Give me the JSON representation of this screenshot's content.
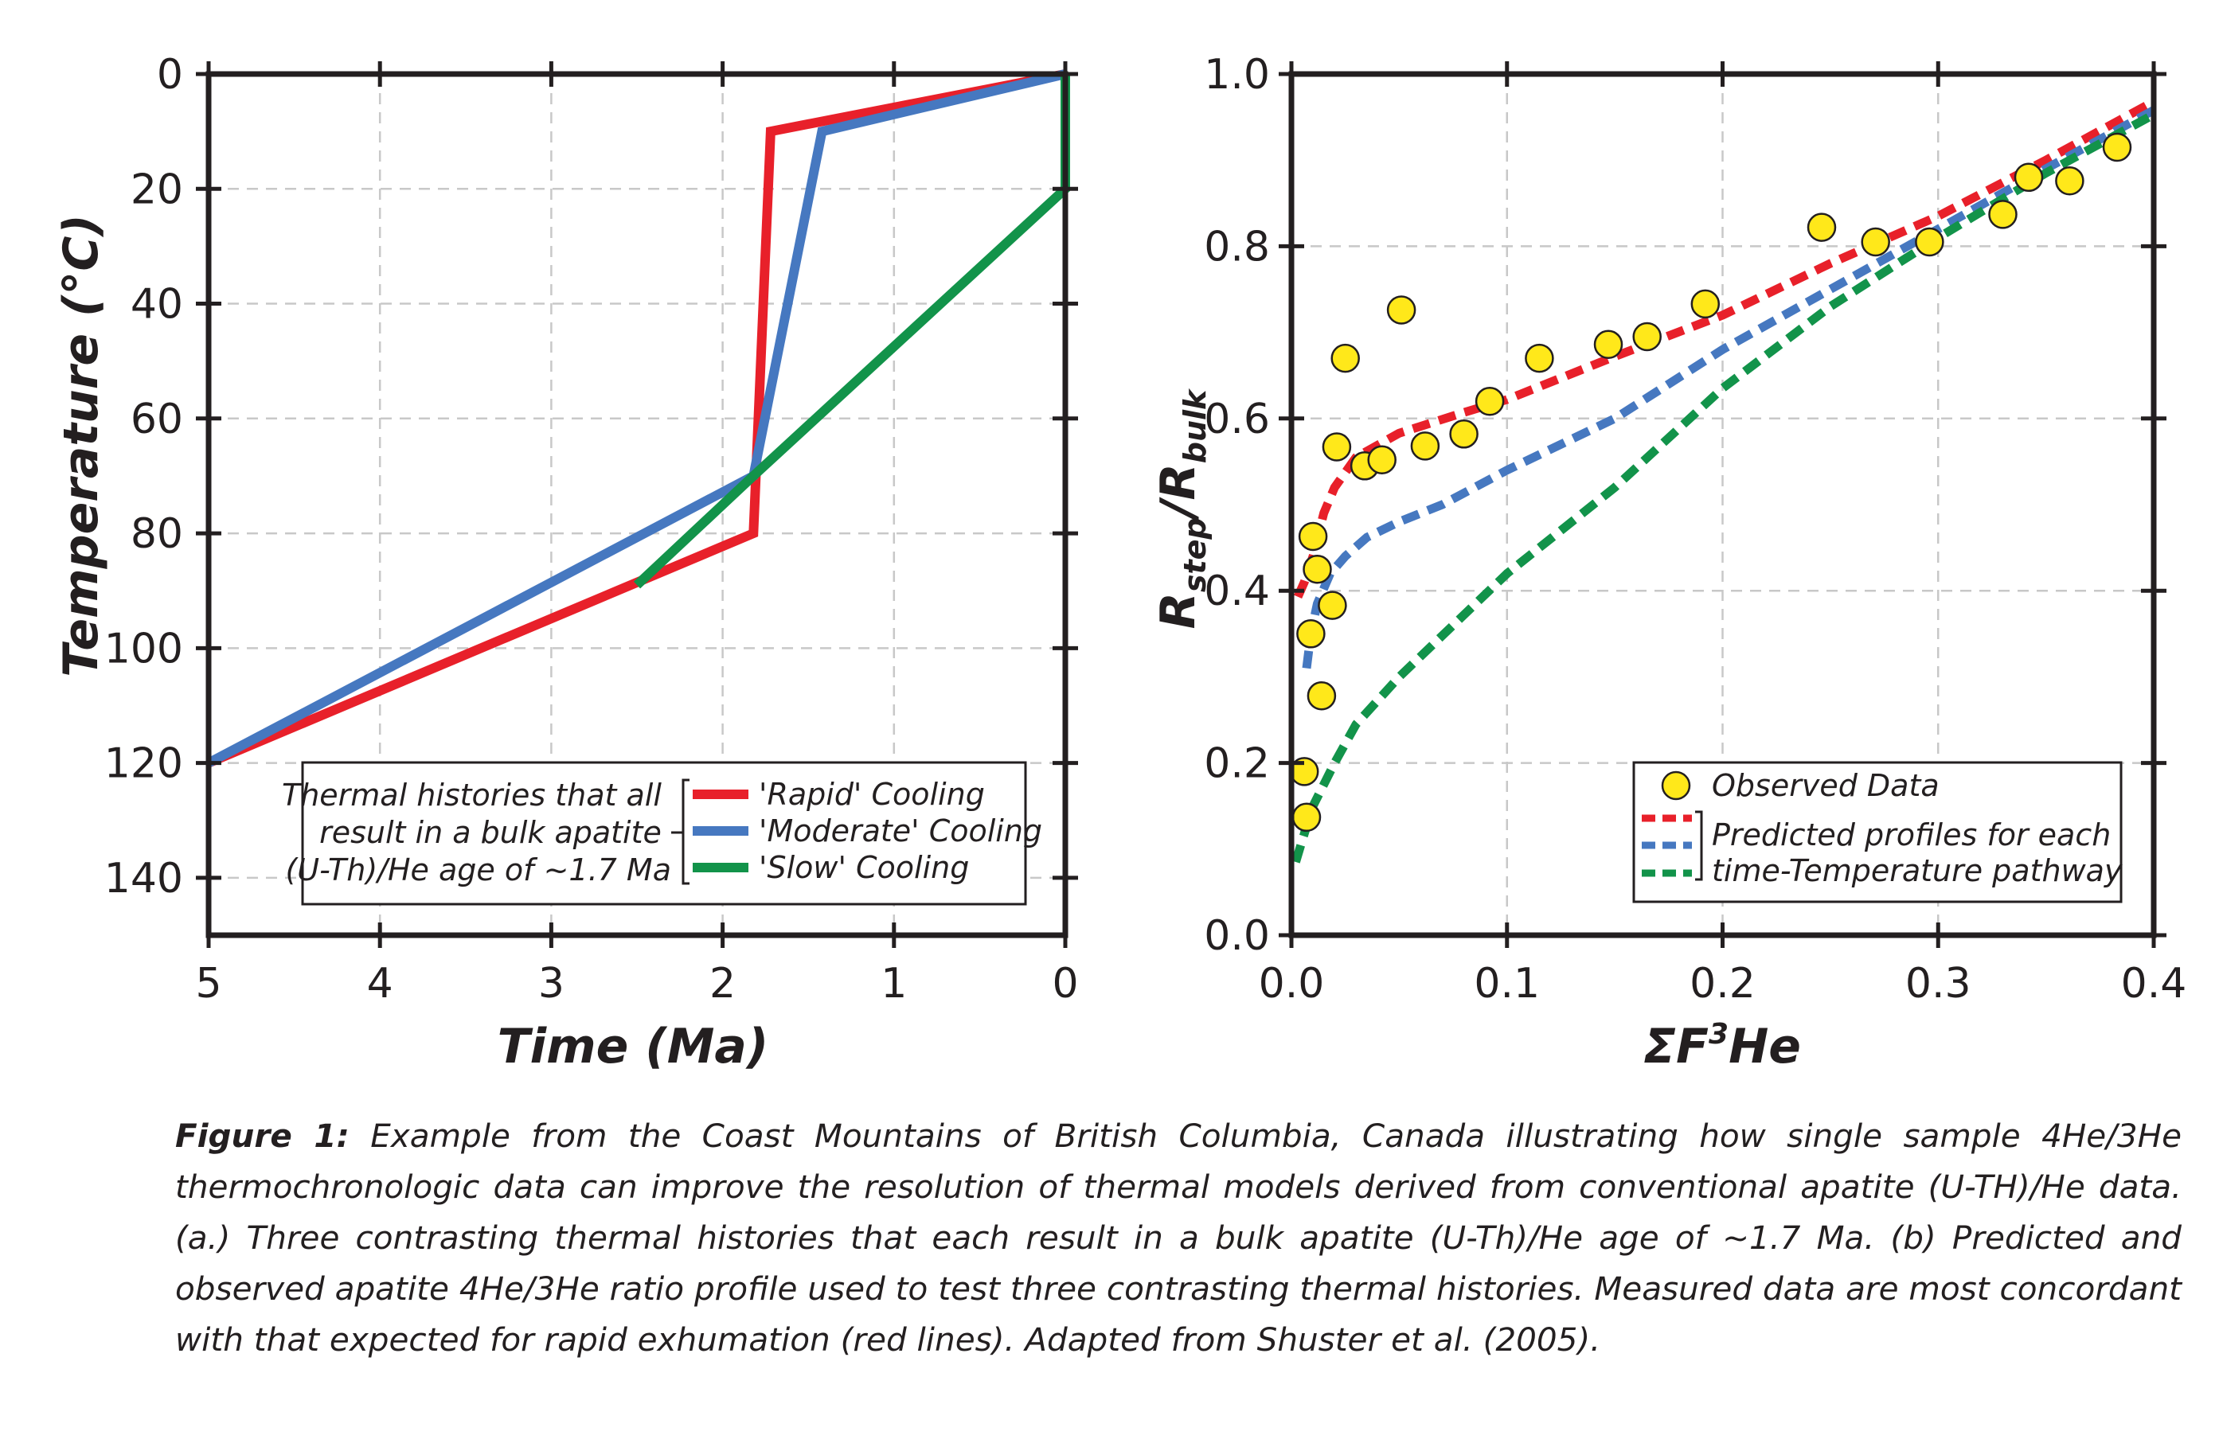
{
  "chart_data": [
    {
      "type": "line",
      "panel": "a",
      "xlabel": "Time (Ma)",
      "ylabel": "Temperature (°C)",
      "xlim": [
        5,
        0
      ],
      "ylim": [
        150,
        0
      ],
      "x_reversed": true,
      "y_reversed": true,
      "x_ticks": [
        5,
        4,
        3,
        2,
        1,
        0
      ],
      "y_ticks": [
        0,
        20,
        40,
        60,
        80,
        100,
        120,
        140
      ],
      "grid": true,
      "legend_position": "bottom-right",
      "legend_note": "Thermal histories that all result in a bulk apatite (U-Th)/He age of ~1.7 Ma",
      "colors": {
        "Rapid": "#e8202a",
        "Moderate": "#4678c0",
        "Slow": "#12934a"
      },
      "series": [
        {
          "name": "'Rapid' Cooling",
          "key": "Rapid",
          "points": [
            [
              5,
              120
            ],
            [
              1.82,
              80
            ],
            [
              1.72,
              10
            ],
            [
              0,
              0
            ]
          ]
        },
        {
          "name": "'Moderate' Cooling",
          "key": "Moderate",
          "points": [
            [
              5,
              120
            ],
            [
              1.82,
              70
            ],
            [
              1.42,
              10
            ],
            [
              0,
              0
            ]
          ]
        },
        {
          "name": "'Slow' Cooling",
          "key": "Slow",
          "points": [
            [
              2.5,
              89
            ],
            [
              1.82,
              70
            ],
            [
              0,
              20
            ],
            [
              0,
              0
            ]
          ]
        }
      ]
    },
    {
      "type": "line",
      "panel": "b",
      "xlabel": "ΣF³He",
      "ylabel": "Rstep/Rbulk",
      "xlim": [
        0,
        0.4
      ],
      "ylim": [
        0,
        1.0
      ],
      "x_ticks": [
        0.0,
        0.1,
        0.2,
        0.3,
        0.4
      ],
      "y_ticks": [
        0.0,
        0.2,
        0.4,
        0.6,
        0.8,
        1.0
      ],
      "grid": true,
      "legend_position": "bottom-right",
      "colors": {
        "observed": "#ffe81a",
        "Rapid": "#e8202a",
        "Moderate": "#4678c0",
        "Slow": "#12934a"
      },
      "observed": {
        "name": "Observed Data",
        "points": [
          [
            0.006,
            0.19
          ],
          [
            0.007,
            0.137
          ],
          [
            0.009,
            0.35
          ],
          [
            0.01,
            0.463
          ],
          [
            0.012,
            0.425
          ],
          [
            0.014,
            0.278
          ],
          [
            0.019,
            0.383
          ],
          [
            0.021,
            0.567
          ],
          [
            0.025,
            0.67
          ],
          [
            0.034,
            0.545
          ],
          [
            0.042,
            0.552
          ],
          [
            0.051,
            0.726
          ],
          [
            0.062,
            0.568
          ],
          [
            0.08,
            0.582
          ],
          [
            0.092,
            0.62
          ],
          [
            0.115,
            0.67
          ],
          [
            0.147,
            0.686
          ],
          [
            0.165,
            0.695
          ],
          [
            0.192,
            0.733
          ],
          [
            0.246,
            0.822
          ],
          [
            0.271,
            0.805
          ],
          [
            0.296,
            0.805
          ],
          [
            0.33,
            0.837
          ],
          [
            0.342,
            0.88
          ],
          [
            0.361,
            0.876
          ],
          [
            0.383,
            0.915
          ]
        ]
      },
      "predicted_label": "Predicted profiles for each time-Temperature pathway",
      "series": [
        {
          "key": "Rapid",
          "dashed": true,
          "points": [
            [
              0.003,
              0.393
            ],
            [
              0.006,
              0.41
            ],
            [
              0.01,
              0.44
            ],
            [
              0.015,
              0.49
            ],
            [
              0.02,
              0.52
            ],
            [
              0.03,
              0.555
            ],
            [
              0.05,
              0.583
            ],
            [
              0.08,
              0.607
            ],
            [
              0.1,
              0.622
            ],
            [
              0.15,
              0.672
            ],
            [
              0.2,
              0.72
            ],
            [
              0.25,
              0.78
            ],
            [
              0.3,
              0.835
            ],
            [
              0.35,
              0.9
            ],
            [
              0.4,
              0.968
            ]
          ]
        },
        {
          "key": "Moderate",
          "dashed": true,
          "points": [
            [
              0.007,
              0.31
            ],
            [
              0.009,
              0.35
            ],
            [
              0.012,
              0.385
            ],
            [
              0.018,
              0.42
            ],
            [
              0.025,
              0.44
            ],
            [
              0.035,
              0.462
            ],
            [
              0.05,
              0.48
            ],
            [
              0.07,
              0.5
            ],
            [
              0.1,
              0.54
            ],
            [
              0.15,
              0.6
            ],
            [
              0.2,
              0.68
            ],
            [
              0.25,
              0.75
            ],
            [
              0.3,
              0.82
            ],
            [
              0.35,
              0.89
            ],
            [
              0.4,
              0.958
            ]
          ]
        },
        {
          "key": "Slow",
          "dashed": true,
          "points": [
            [
              0.002,
              0.085
            ],
            [
              0.005,
              0.11
            ],
            [
              0.01,
              0.15
            ],
            [
              0.02,
              0.2
            ],
            [
              0.03,
              0.245
            ],
            [
              0.05,
              0.3
            ],
            [
              0.075,
              0.36
            ],
            [
              0.1,
              0.42
            ],
            [
              0.15,
              0.52
            ],
            [
              0.2,
              0.635
            ],
            [
              0.25,
              0.73
            ],
            [
              0.3,
              0.81
            ],
            [
              0.35,
              0.885
            ],
            [
              0.4,
              0.953
            ]
          ]
        }
      ]
    }
  ],
  "caption": {
    "label": "Figure 1:",
    "text": " Example from the Coast Mountains of British Columbia, Canada illustrating how single sample 4He/3He thermochronologic data can improve the resolution of thermal models derived from conventional apatite (U-TH)/He data. (a.) Three contrasting thermal histories that each result in a bulk apatite (U-Th)/He age of ~1.7 Ma. (b) Predicted and observed apatite 4He/3He ratio profile used to test three contrasting thermal histories. Measured data are most concordant with that expected for rapid exhumation (red lines). Adapted from Shuster et al. (2005)."
  }
}
